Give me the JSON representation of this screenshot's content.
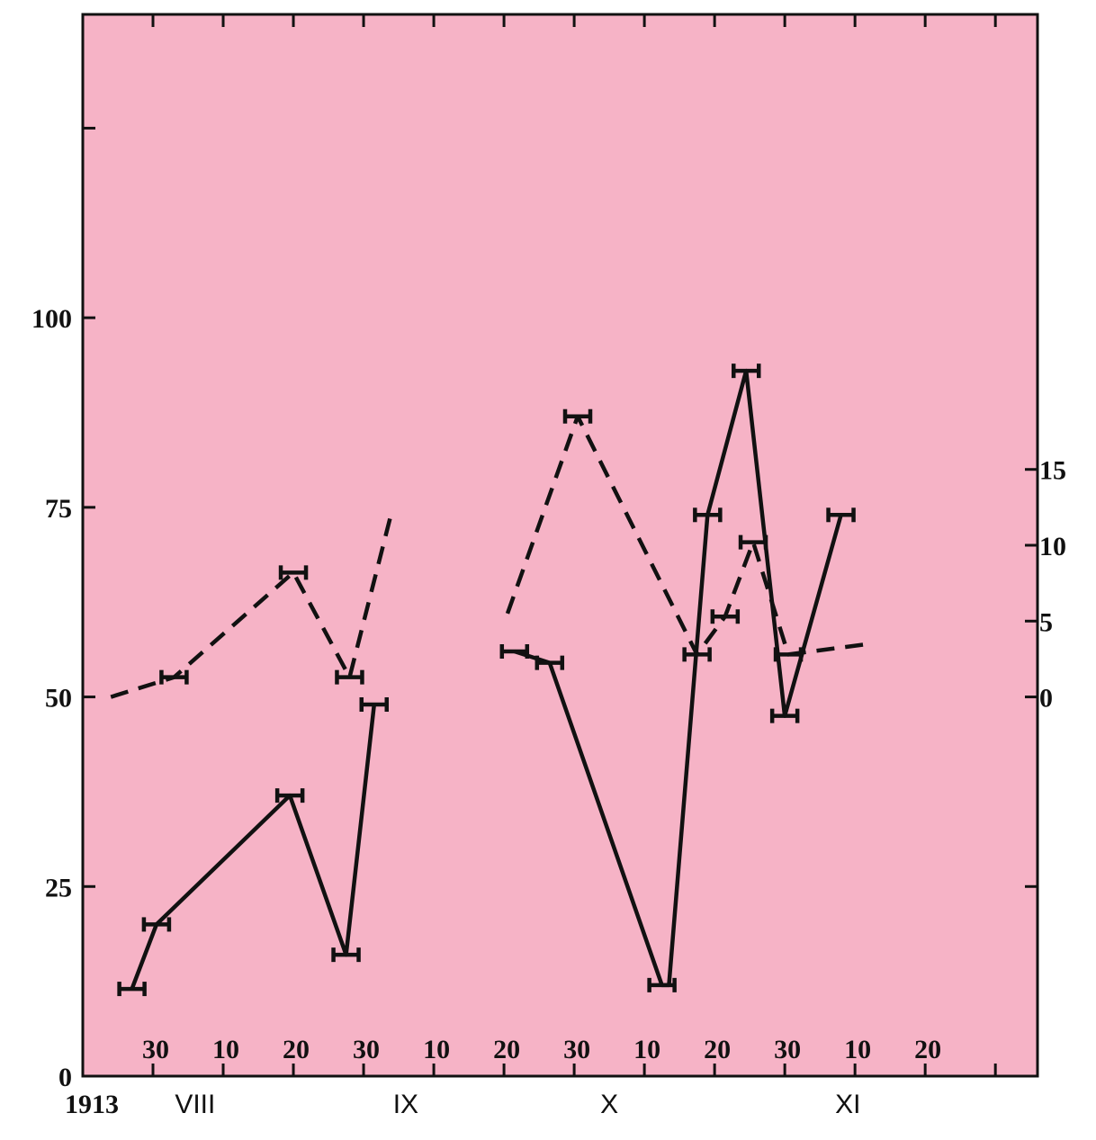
{
  "chart_data": {
    "type": "line",
    "title": "",
    "year_label": "1913",
    "x_units": "day of year 1913",
    "xlim": [
      204,
      340
    ],
    "month_labels": [
      {
        "label": "VIII",
        "x": 220
      },
      {
        "label": "IX",
        "x": 250
      },
      {
        "label": "X",
        "x": 279
      },
      {
        "label": "XI",
        "x": 313
      }
    ],
    "x_ticks": [
      {
        "x": 214,
        "label": "30"
      },
      {
        "x": 224,
        "label": "10"
      },
      {
        "x": 234,
        "label": "20"
      },
      {
        "x": 244,
        "label": "30"
      },
      {
        "x": 254,
        "label": "10"
      },
      {
        "x": 264,
        "label": "20"
      },
      {
        "x": 274,
        "label": "30"
      },
      {
        "x": 284,
        "label": "10"
      },
      {
        "x": 294,
        "label": "20"
      },
      {
        "x": 304,
        "label": "30"
      },
      {
        "x": 314,
        "label": "10"
      },
      {
        "x": 324,
        "label": "20"
      },
      {
        "x": 334,
        "label": ""
      }
    ],
    "left_axis": {
      "ylim": [
        0,
        140
      ],
      "ticks": [
        {
          "v": 0,
          "label": "0"
        },
        {
          "v": 25,
          "label": "25"
        },
        {
          "v": 50,
          "label": "50"
        },
        {
          "v": 75,
          "label": "75"
        },
        {
          "v": 100,
          "label": "100"
        },
        {
          "v": 125,
          "label": ""
        }
      ]
    },
    "right_axis": {
      "ylim": [
        -25,
        45
      ],
      "ticks": [
        {
          "v": -25,
          "label": ""
        },
        {
          "v": -12.5,
          "label": ""
        },
        {
          "v": 0,
          "label": "0"
        },
        {
          "v": 5,
          "label": "5"
        },
        {
          "v": 10,
          "label": "10"
        },
        {
          "v": 15,
          "label": "15"
        }
      ]
    },
    "series": [
      {
        "style": "solid",
        "axis": "left",
        "segments": [
          [
            [
              211,
              11.5,
              true
            ],
            [
              214.5,
              20,
              true
            ],
            [
              233.5,
              37,
              true
            ],
            [
              241.5,
              16,
              true
            ],
            [
              245.5,
              49,
              true
            ]
          ],
          [
            [
              265.5,
              56,
              true
            ],
            [
              270.5,
              54.5,
              true
            ],
            [
              286.5,
              12,
              true
            ],
            [
              287.5,
              12,
              false
            ],
            [
              293,
              74,
              true
            ],
            [
              298.5,
              93,
              true
            ],
            [
              304,
              47.5,
              true
            ],
            [
              312,
              74,
              true
            ]
          ]
        ]
      },
      {
        "style": "dashed",
        "axis": "right",
        "segments": [
          [
            [
              208,
              0,
              false
            ],
            [
              217,
              1.3,
              true
            ],
            [
              234,
              8.2,
              true
            ],
            [
              242,
              1.3,
              true
            ],
            [
              248,
              12.2,
              false
            ]
          ],
          [
            [
              264.5,
              5.5,
              false
            ],
            [
              274.5,
              18.5,
              true
            ],
            [
              291.5,
              2.8,
              true
            ],
            [
              295.5,
              5.3,
              true
            ],
            [
              299.5,
              10.2,
              true
            ],
            [
              304.5,
              2.8,
              true
            ],
            [
              316,
              3.5,
              false
            ]
          ]
        ]
      }
    ]
  }
}
